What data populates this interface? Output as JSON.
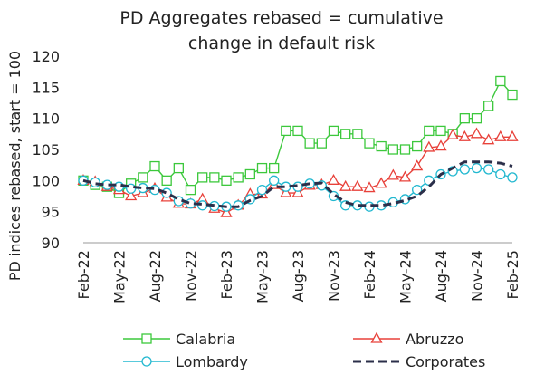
{
  "chart_data": {
    "type": "line",
    "title": [
      "PD Aggregates rebased = cumulative",
      "change in default risk"
    ],
    "xlabel": "",
    "ylabel": "PD indices rebased, start = 100",
    "ylim": [
      90,
      120
    ],
    "yticks": [
      "90",
      "95",
      "100",
      "105",
      "110",
      "115",
      "120"
    ],
    "xlim": [
      0,
      36
    ],
    "xticks": [
      "Feb-22",
      "May-22",
      "Aug-22",
      "Nov-22",
      "Feb-23",
      "May-23",
      "Aug-23",
      "Nov-23",
      "Feb-24",
      "May-24",
      "Aug-24",
      "Nov-24",
      "Feb-25"
    ],
    "grid": false,
    "legend_position": "bottom",
    "series": [
      {
        "name": "Calabria",
        "color": "#3cc83c",
        "marker": "square",
        "dash": "solid",
        "values": [
          100,
          99.3,
          99,
          98,
          99.5,
          100.5,
          102.3,
          100,
          102,
          98.5,
          100.5,
          100.5,
          100,
          100.5,
          101,
          102,
          102,
          108,
          108,
          106,
          106,
          108,
          107.5,
          107.5,
          106,
          105.5,
          105,
          105,
          105.5,
          108,
          108,
          107.5,
          110,
          110,
          112,
          116,
          113.8
        ]
      },
      {
        "name": "Abruzzo",
        "color": "#e8413a",
        "marker": "triangle",
        "dash": "solid",
        "values": [
          100,
          99.8,
          99,
          98.5,
          97.5,
          98,
          98.7,
          97.3,
          96.3,
          96.2,
          97,
          95.5,
          94.8,
          96,
          97.8,
          97.8,
          99.3,
          98,
          98,
          99.2,
          99.3,
          100,
          99,
          99,
          98.8,
          99.5,
          100.8,
          100.5,
          102.3,
          105.3,
          105.5,
          107.3,
          107,
          107.5,
          106.5,
          107,
          107
        ]
      },
      {
        "name": "Lombardy",
        "color": "#22b8d0",
        "marker": "circle",
        "dash": "solid",
        "values": [
          100,
          99.7,
          99.3,
          99,
          98.7,
          98.8,
          98.5,
          98,
          96.7,
          96.3,
          96,
          95.9,
          95.8,
          96,
          97,
          98.5,
          100,
          99,
          99,
          99.5,
          99.2,
          97.5,
          96,
          96,
          95.8,
          96,
          96.5,
          97,
          98.5,
          100,
          101,
          101.5,
          101.8,
          102,
          101.8,
          101,
          100.5
        ]
      },
      {
        "name": "Corporates",
        "color": "#2b2f4a",
        "marker": "none",
        "dash": "dashed",
        "values": [
          100,
          99.5,
          99.3,
          99.3,
          99,
          98.8,
          98.7,
          98,
          97,
          96.3,
          96.2,
          96,
          95.8,
          95.8,
          96.8,
          97.5,
          99,
          99,
          99.2,
          99.5,
          99.6,
          97.8,
          96.5,
          96,
          96,
          96,
          96.3,
          96.8,
          97.5,
          99,
          101,
          102,
          103,
          103,
          103,
          102.8,
          102.3
        ]
      }
    ]
  }
}
